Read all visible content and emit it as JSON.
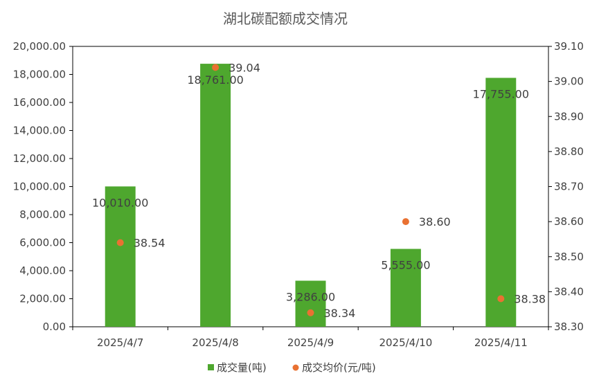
{
  "chart_data": {
    "type": "bar",
    "title": "湖北碳配额成交情况",
    "categories": [
      "2025/4/7",
      "2025/4/8",
      "2025/4/9",
      "2025/4/10",
      "2025/4/11"
    ],
    "series": [
      {
        "name": "成交量(吨)",
        "type": "bar",
        "axis": "left",
        "values": [
          10010,
          18761,
          3286,
          5555,
          17755
        ],
        "labels": [
          "10,010.00",
          "18,761.00",
          "3,286.00",
          "5,555.00",
          "17,755.00"
        ],
        "color": "#4EA72E"
      },
      {
        "name": "成交均价(元/吨)",
        "type": "scatter",
        "axis": "right",
        "values": [
          38.54,
          39.04,
          38.34,
          38.6,
          38.38
        ],
        "labels": [
          "38.54",
          "39.04",
          "38.34",
          "38.60",
          "38.38"
        ],
        "color": "#E97132"
      }
    ],
    "y_left": {
      "min": 0,
      "max": 20000,
      "ticks": [
        "0.00",
        "2,000.00",
        "4,000.00",
        "6,000.00",
        "8,000.00",
        "10,000.00",
        "12,000.00",
        "14,000.00",
        "16,000.00",
        "18,000.00",
        "20,000.00"
      ]
    },
    "y_right": {
      "min": 38.3,
      "max": 39.1,
      "ticks": [
        "38.30",
        "38.40",
        "38.50",
        "38.60",
        "38.70",
        "38.80",
        "38.90",
        "39.00",
        "39.10"
      ]
    },
    "grid": false,
    "legend": "bottom"
  }
}
